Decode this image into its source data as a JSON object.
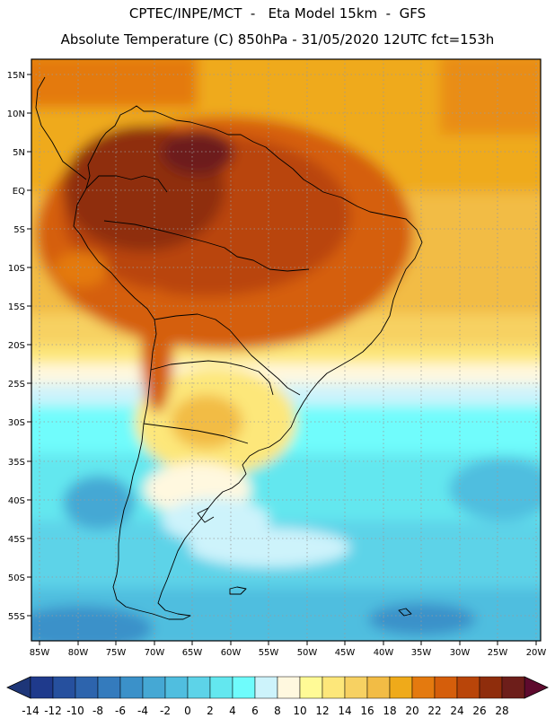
{
  "header": {
    "line1": "CPTEC/INPE/MCT  -   Eta Model 15km  -  GFS",
    "line2": "Absolute Temperature (C) 850hPa - 31/05/2020 12UTC fct=153h"
  },
  "map": {
    "lat_labels": [
      "15N",
      "10N",
      "5N",
      "EQ",
      "5S",
      "10S",
      "15S",
      "20S",
      "25S",
      "30S",
      "35S",
      "40S",
      "45S",
      "50S",
      "55S"
    ],
    "lon_labels": [
      "85W",
      "80W",
      "75W",
      "70W",
      "65W",
      "60W",
      "55W",
      "50W",
      "45W",
      "40W",
      "35W",
      "30W",
      "25W",
      "20W"
    ]
  },
  "colorbar": {
    "labels": [
      "-14",
      "-12",
      "-10",
      "-8",
      "-6",
      "-4",
      "-2",
      "0",
      "2",
      "4",
      "6",
      "8",
      "10",
      "12",
      "14",
      "16",
      "18",
      "20",
      "22",
      "24",
      "26",
      "28"
    ],
    "colors": [
      "#1f3a8c",
      "#26509e",
      "#2d64ad",
      "#347bbd",
      "#3b91c9",
      "#45a8d4",
      "#50bedf",
      "#5dd3e8",
      "#63e7ef",
      "#6ffcfc",
      "#cdf3fb",
      "#fff8df",
      "#fffa96",
      "#fde77a",
      "#f7d162",
      "#f2bc45",
      "#efaa1a",
      "#e47a0f",
      "#d55e0b",
      "#b94509",
      "#8f2d0c",
      "#6d1e1a"
    ],
    "min_color": "#1e3678",
    "max_color": "#5e0a2e"
  }
}
